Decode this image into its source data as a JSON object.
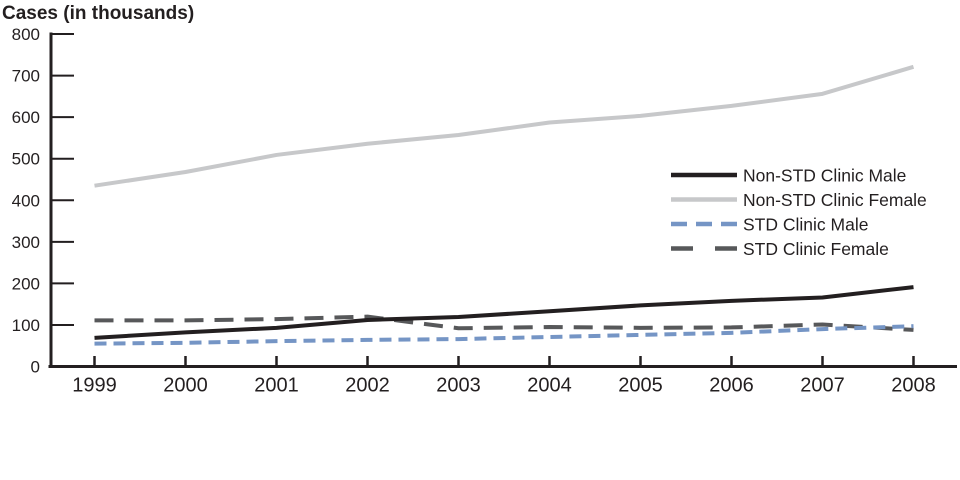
{
  "chart_data": {
    "type": "line",
    "title": "Cases (in thousands)",
    "xlabel": "",
    "ylabel": "Cases (in thousands)",
    "ylim": [
      0,
      800
    ],
    "ytick_interval": 100,
    "yticks": [
      "0",
      "100",
      "200",
      "300",
      "400",
      "500",
      "600",
      "700",
      "800"
    ],
    "categories": [
      "1999",
      "2000",
      "2001",
      "2002",
      "2003",
      "2004",
      "2005",
      "2006",
      "2007",
      "2008"
    ],
    "grid": false,
    "legend_position": "right-middle",
    "series": [
      {
        "name": "Non-STD Clinic Male",
        "color": "#231f20",
        "line_style": "solid",
        "values": [
          69,
          82,
          93,
          112,
          119,
          133,
          147,
          158,
          166,
          191
        ]
      },
      {
        "name": "Non-STD Clinic Female",
        "color": "#c7c8ca",
        "line_style": "solid",
        "values": [
          435,
          468,
          509,
          536,
          557,
          587,
          603,
          627,
          656,
          721
        ]
      },
      {
        "name": "STD Clinic Male",
        "color": "#7595c5",
        "line_style": "dashed",
        "values": [
          55,
          57,
          61,
          64,
          66,
          71,
          76,
          81,
          90,
          97
        ]
      },
      {
        "name": "STD Clinic Female",
        "color": "#57585a",
        "line_style": "long-dashed",
        "values": [
          111,
          111,
          114,
          120,
          92,
          95,
          93,
          94,
          101,
          88
        ]
      }
    ]
  }
}
